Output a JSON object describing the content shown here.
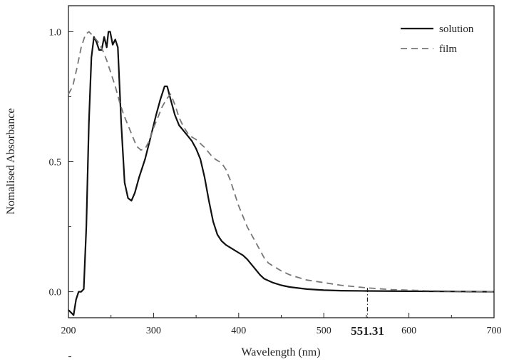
{
  "chart_data": {
    "type": "line",
    "title": "",
    "xlabel": "Wavelength (nm)",
    "ylabel": "Nomalised Absorbance",
    "xlim": [
      200,
      700
    ],
    "ylim": [
      -0.1,
      1.1
    ],
    "x_ticks": [
      200,
      300,
      400,
      500,
      600,
      700
    ],
    "y_ticks": [
      0.0,
      0.5,
      1.0
    ],
    "x_tick_labels": [
      "200",
      "300",
      "400",
      "500",
      "600",
      "700"
    ],
    "y_tick_labels": [
      "0.0",
      "0.5",
      "1.0"
    ],
    "grid": false,
    "legend_position": "top-right",
    "annotation": {
      "text": "551.31",
      "x": 551.31
    },
    "series": [
      {
        "name": "solution",
        "style": "solid",
        "color": "#111111",
        "points": [
          [
            200,
            -0.07
          ],
          [
            203,
            -0.08
          ],
          [
            206,
            -0.09
          ],
          [
            209,
            -0.03
          ],
          [
            212,
            0.0
          ],
          [
            215,
            0.0
          ],
          [
            218,
            0.01
          ],
          [
            221,
            0.25
          ],
          [
            224,
            0.65
          ],
          [
            227,
            0.9
          ],
          [
            230,
            0.98
          ],
          [
            233,
            0.96
          ],
          [
            236,
            0.93
          ],
          [
            239,
            0.93
          ],
          [
            242,
            0.98
          ],
          [
            245,
            0.94
          ],
          [
            247,
            1.0
          ],
          [
            249,
            1.0
          ],
          [
            252,
            0.95
          ],
          [
            255,
            0.97
          ],
          [
            258,
            0.94
          ],
          [
            262,
            0.65
          ],
          [
            266,
            0.42
          ],
          [
            270,
            0.36
          ],
          [
            274,
            0.35
          ],
          [
            278,
            0.38
          ],
          [
            283,
            0.44
          ],
          [
            290,
            0.51
          ],
          [
            297,
            0.6
          ],
          [
            303,
            0.68
          ],
          [
            308,
            0.74
          ],
          [
            313,
            0.79
          ],
          [
            316,
            0.79
          ],
          [
            320,
            0.74
          ],
          [
            325,
            0.68
          ],
          [
            330,
            0.64
          ],
          [
            335,
            0.62
          ],
          [
            340,
            0.6
          ],
          [
            345,
            0.58
          ],
          [
            350,
            0.55
          ],
          [
            355,
            0.51
          ],
          [
            360,
            0.44
          ],
          [
            365,
            0.35
          ],
          [
            370,
            0.27
          ],
          [
            375,
            0.22
          ],
          [
            380,
            0.195
          ],
          [
            385,
            0.18
          ],
          [
            390,
            0.17
          ],
          [
            395,
            0.16
          ],
          [
            400,
            0.15
          ],
          [
            405,
            0.14
          ],
          [
            410,
            0.125
          ],
          [
            415,
            0.105
          ],
          [
            420,
            0.085
          ],
          [
            425,
            0.065
          ],
          [
            430,
            0.05
          ],
          [
            440,
            0.035
          ],
          [
            450,
            0.025
          ],
          [
            460,
            0.018
          ],
          [
            480,
            0.01
          ],
          [
            500,
            0.006
          ],
          [
            520,
            0.004
          ],
          [
            550,
            0.003
          ],
          [
            600,
            0.002
          ],
          [
            650,
            0.001
          ],
          [
            700,
            0.0
          ]
        ]
      },
      {
        "name": "film",
        "style": "dashed",
        "color": "#777777",
        "points": [
          [
            200,
            0.76
          ],
          [
            205,
            0.79
          ],
          [
            210,
            0.86
          ],
          [
            215,
            0.94
          ],
          [
            220,
            0.99
          ],
          [
            224,
            1.0
          ],
          [
            230,
            0.98
          ],
          [
            235,
            0.96
          ],
          [
            240,
            0.93
          ],
          [
            245,
            0.89
          ],
          [
            250,
            0.84
          ],
          [
            255,
            0.79
          ],
          [
            260,
            0.73
          ],
          [
            265,
            0.68
          ],
          [
            270,
            0.64
          ],
          [
            275,
            0.6
          ],
          [
            280,
            0.56
          ],
          [
            285,
            0.545
          ],
          [
            290,
            0.55
          ],
          [
            295,
            0.58
          ],
          [
            300,
            0.63
          ],
          [
            305,
            0.67
          ],
          [
            310,
            0.71
          ],
          [
            315,
            0.74
          ],
          [
            320,
            0.76
          ],
          [
            325,
            0.72
          ],
          [
            330,
            0.67
          ],
          [
            335,
            0.635
          ],
          [
            340,
            0.61
          ],
          [
            345,
            0.595
          ],
          [
            350,
            0.585
          ],
          [
            355,
            0.57
          ],
          [
            360,
            0.555
          ],
          [
            365,
            0.535
          ],
          [
            370,
            0.515
          ],
          [
            375,
            0.505
          ],
          [
            380,
            0.495
          ],
          [
            385,
            0.47
          ],
          [
            390,
            0.43
          ],
          [
            395,
            0.38
          ],
          [
            400,
            0.33
          ],
          [
            405,
            0.29
          ],
          [
            410,
            0.25
          ],
          [
            415,
            0.22
          ],
          [
            420,
            0.19
          ],
          [
            425,
            0.16
          ],
          [
            430,
            0.13
          ],
          [
            435,
            0.11
          ],
          [
            440,
            0.1
          ],
          [
            450,
            0.08
          ],
          [
            460,
            0.065
          ],
          [
            470,
            0.055
          ],
          [
            480,
            0.045
          ],
          [
            500,
            0.035
          ],
          [
            520,
            0.025
          ],
          [
            550,
            0.015
          ],
          [
            580,
            0.008
          ],
          [
            620,
            0.004
          ],
          [
            660,
            0.002
          ],
          [
            700,
            0.0
          ]
        ]
      }
    ]
  }
}
